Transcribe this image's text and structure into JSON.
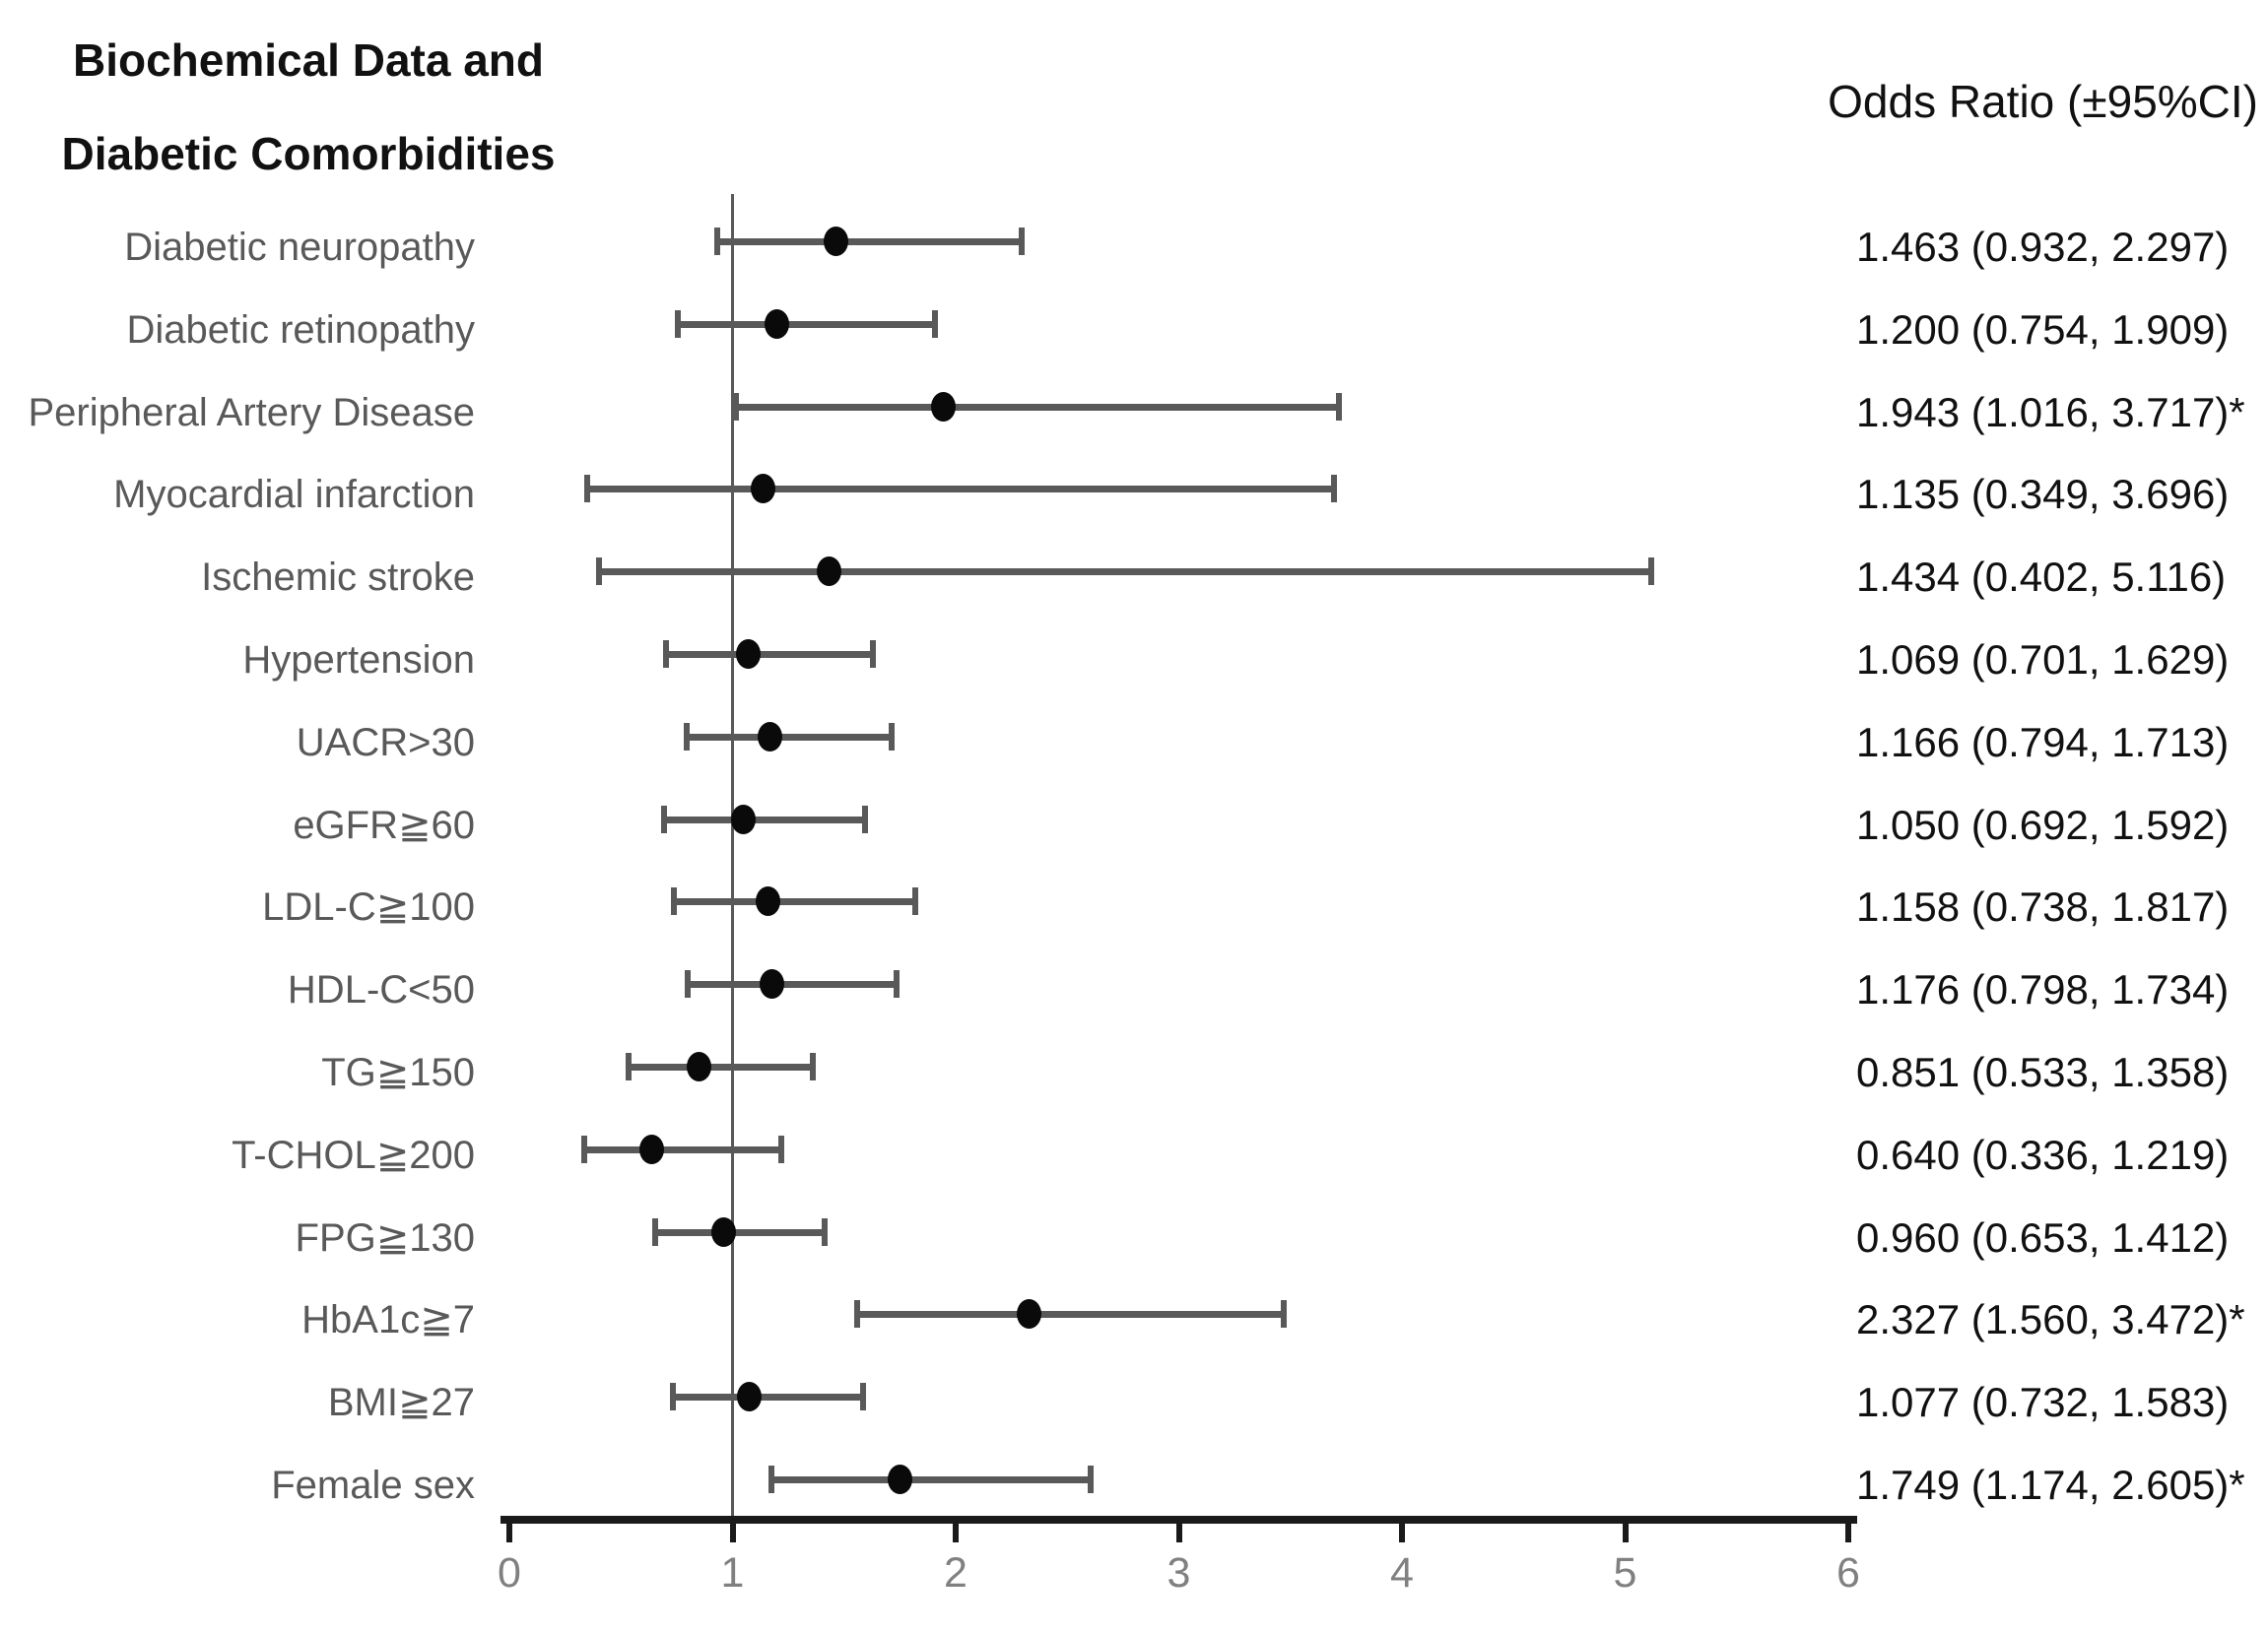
{
  "title": {
    "line1": "Biochemical Data and",
    "line2": "Diabetic Comorbidities"
  },
  "header": {
    "odds_ratio_label": "Odds Ratio (±95%CI)"
  },
  "axis": {
    "tick_labels": [
      "0",
      "1",
      "2",
      "3",
      "4",
      "5",
      "6"
    ],
    "min": 0,
    "max": 6,
    "reference_value": 1
  },
  "rows": [
    {
      "label": "Diabetic neuropathy",
      "or": 1.463,
      "low": 0.932,
      "high": 2.297,
      "display": "1.463 (0.932, 2.297)",
      "significant": false
    },
    {
      "label": "Diabetic retinopathy",
      "or": 1.2,
      "low": 0.754,
      "high": 1.909,
      "display": "1.200 (0.754, 1.909)",
      "significant": false
    },
    {
      "label": "Peripheral Artery Disease",
      "or": 1.943,
      "low": 1.016,
      "high": 3.717,
      "display": "1.943 (1.016, 3.717)*",
      "significant": true
    },
    {
      "label": "Myocardial infarction",
      "or": 1.135,
      "low": 0.349,
      "high": 3.696,
      "display": "1.135 (0.349, 3.696)",
      "significant": false
    },
    {
      "label": "Ischemic stroke",
      "or": 1.434,
      "low": 0.402,
      "high": 5.116,
      "display": "1.434 (0.402, 5.116)",
      "significant": false
    },
    {
      "label": "Hypertension",
      "or": 1.069,
      "low": 0.701,
      "high": 1.629,
      "display": "1.069 (0.701, 1.629)",
      "significant": false
    },
    {
      "label": "UACR>30",
      "or": 1.166,
      "low": 0.794,
      "high": 1.713,
      "display": "1.166 (0.794, 1.713)",
      "significant": false
    },
    {
      "label": "eGFR≧60",
      "or": 1.05,
      "low": 0.692,
      "high": 1.592,
      "display": "1.050 (0.692, 1.592)",
      "significant": false
    },
    {
      "label": "LDL-C≧100",
      "or": 1.158,
      "low": 0.738,
      "high": 1.817,
      "display": "1.158 (0.738, 1.817)",
      "significant": false
    },
    {
      "label": "HDL-C<50",
      "or": 1.176,
      "low": 0.798,
      "high": 1.734,
      "display": "1.176 (0.798, 1.734)",
      "significant": false
    },
    {
      "label": "TG≧150",
      "or": 0.851,
      "low": 0.533,
      "high": 1.358,
      "display": "0.851 (0.533, 1.358)",
      "significant": false
    },
    {
      "label": "T-CHOL≧200",
      "or": 0.64,
      "low": 0.336,
      "high": 1.219,
      "display": "0.640 (0.336, 1.219)",
      "significant": false
    },
    {
      "label": "FPG≧130",
      "or": 0.96,
      "low": 0.653,
      "high": 1.412,
      "display": "0.960 (0.653, 1.412)",
      "significant": false
    },
    {
      "label": "HbA1c≧7",
      "or": 2.327,
      "low": 1.56,
      "high": 3.472,
      "display": "2.327 (1.560, 3.472)*",
      "significant": true
    },
    {
      "label": "BMI≧27",
      "or": 1.077,
      "low": 0.732,
      "high": 1.583,
      "display": "1.077 (0.732, 1.583)",
      "significant": false
    },
    {
      "label": "Female sex",
      "or": 1.749,
      "low": 1.174,
      "high": 2.605,
      "display": "1.749 (1.174, 2.605)*",
      "significant": true
    }
  ],
  "colors": {
    "text_dark": "#111111",
    "label_gray": "#595959",
    "bar_gray": "#595959",
    "axis_black": "#1a1a1a",
    "tick_label_gray": "#808080",
    "marker_black": "#0a0a0a"
  },
  "chart_data": {
    "type": "scatter",
    "subtype": "forest-plot",
    "title": "Biochemical Data and Diabetic Comorbidities",
    "value_column_header": "Odds Ratio (±95%CI)",
    "orientation": "horizontal",
    "categories": [
      "Diabetic neuropathy",
      "Diabetic retinopathy",
      "Peripheral Artery Disease",
      "Myocardial infarction",
      "Ischemic stroke",
      "Hypertension",
      "UACR>30",
      "eGFR≧60",
      "LDL-C≧100",
      "HDL-C<50",
      "TG≧150",
      "T-CHOL≧200",
      "FPG≧130",
      "HbA1c≧7",
      "BMI≧27",
      "Female sex"
    ],
    "series": [
      {
        "name": "Odds Ratio",
        "values": [
          1.463,
          1.2,
          1.943,
          1.135,
          1.434,
          1.069,
          1.166,
          1.05,
          1.158,
          1.176,
          0.851,
          0.64,
          0.96,
          2.327,
          1.077,
          1.749
        ]
      },
      {
        "name": "CI lower 95%",
        "values": [
          0.932,
          0.754,
          1.016,
          0.349,
          0.402,
          0.701,
          0.794,
          0.692,
          0.738,
          0.798,
          0.533,
          0.336,
          0.653,
          1.56,
          0.732,
          1.174
        ]
      },
      {
        "name": "CI upper 95%",
        "values": [
          2.297,
          1.909,
          3.717,
          3.696,
          5.116,
          1.629,
          1.713,
          1.592,
          1.817,
          1.734,
          1.358,
          1.219,
          1.412,
          3.472,
          1.583,
          2.605
        ]
      }
    ],
    "significant_categories": [
      "Peripheral Artery Disease",
      "HbA1c≧7",
      "Female sex"
    ],
    "significance_marker": "*",
    "xlabel": "",
    "ylabel": "",
    "xlim": [
      0,
      6
    ],
    "x_ticks": [
      0,
      1,
      2,
      3,
      4,
      5,
      6
    ],
    "reference_line_x": 1,
    "grid": false,
    "legend": false
  }
}
